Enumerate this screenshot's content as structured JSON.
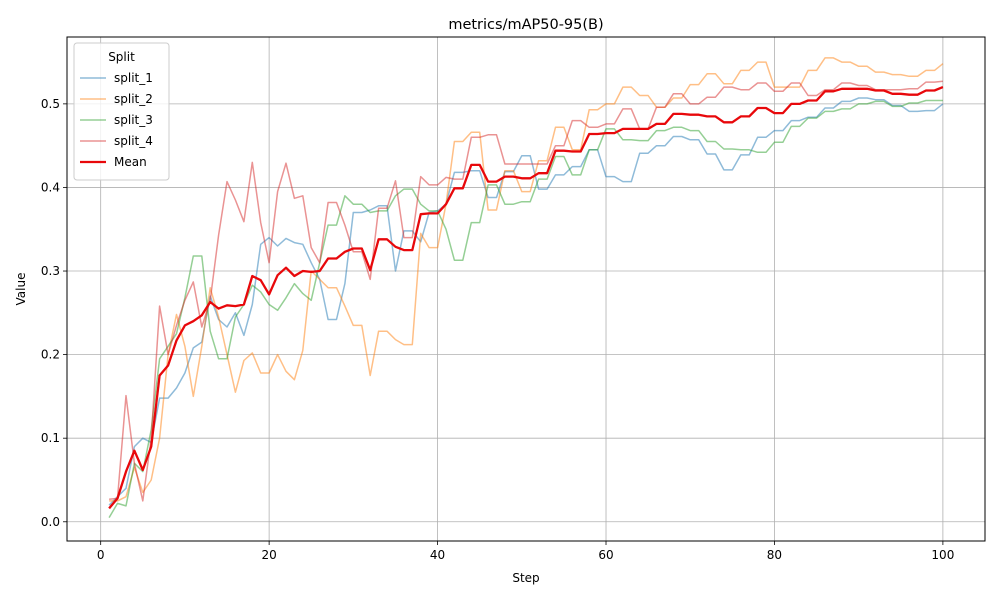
{
  "chart_data": {
    "type": "line",
    "title": "metrics/mAP50-95(B)",
    "xlabel": "Step",
    "ylabel": "Value",
    "xlim": [
      -4,
      105
    ],
    "ylim": [
      -0.023,
      0.58
    ],
    "xticks": [
      0,
      20,
      40,
      60,
      80,
      100
    ],
    "yticks": [
      0.0,
      0.1,
      0.2,
      0.3,
      0.4,
      0.5
    ],
    "xtick_labels": [
      "0",
      "20",
      "40",
      "60",
      "80",
      "100"
    ],
    "ytick_labels": [
      "0.0",
      "0.1",
      "0.2",
      "0.3",
      "0.4",
      "0.5"
    ],
    "grid": true,
    "legend": {
      "title": "Split",
      "position": "top-left"
    },
    "x": [
      1,
      2,
      3,
      4,
      5,
      6,
      7,
      8,
      9,
      10,
      11,
      12,
      13,
      14,
      15,
      16,
      17,
      18,
      19,
      20,
      21,
      22,
      23,
      24,
      25,
      26,
      27,
      28,
      29,
      30,
      31,
      32,
      33,
      34,
      35,
      36,
      37,
      38,
      39,
      40,
      41,
      42,
      43,
      44,
      45,
      46,
      47,
      48,
      49,
      50,
      51,
      52,
      53,
      54,
      55,
      56,
      57,
      58,
      59,
      60,
      61,
      62,
      63,
      64,
      65,
      66,
      67,
      68,
      69,
      70,
      71,
      72,
      73,
      74,
      75,
      76,
      77,
      78,
      79,
      80,
      81,
      82,
      83,
      84,
      85,
      86,
      87,
      88,
      89,
      90,
      91,
      92,
      93,
      94,
      95,
      96,
      97,
      98,
      99,
      100
    ],
    "series": [
      {
        "name": "split_1",
        "color": "#1f77b4",
        "opacity": 0.5,
        "width": 1.5,
        "values": [
          0.02,
          0.03,
          0.04,
          0.09,
          0.1,
          0.095,
          0.148,
          0.148,
          0.16,
          0.178,
          0.208,
          0.215,
          0.27,
          0.242,
          0.233,
          0.25,
          0.223,
          0.26,
          0.332,
          0.34,
          0.33,
          0.339,
          0.334,
          0.332,
          0.31,
          0.29,
          0.242,
          0.242,
          0.285,
          0.37,
          0.37,
          0.373,
          0.378,
          0.378,
          0.3,
          0.348,
          0.348,
          0.335,
          0.37,
          0.372,
          0.38,
          0.418,
          0.418,
          0.42,
          0.42,
          0.388,
          0.388,
          0.419,
          0.419,
          0.438,
          0.438,
          0.398,
          0.398,
          0.415,
          0.415,
          0.425,
          0.425,
          0.445,
          0.445,
          0.413,
          0.413,
          0.407,
          0.407,
          0.441,
          0.441,
          0.45,
          0.45,
          0.461,
          0.461,
          0.457,
          0.457,
          0.44,
          0.44,
          0.421,
          0.421,
          0.439,
          0.439,
          0.46,
          0.46,
          0.468,
          0.468,
          0.48,
          0.48,
          0.484,
          0.484,
          0.495,
          0.495,
          0.503,
          0.503,
          0.507,
          0.507,
          0.505,
          0.505,
          0.498,
          0.498,
          0.491,
          0.491,
          0.492,
          0.492,
          0.5
        ]
      },
      {
        "name": "split_2",
        "color": "#ff7f0e",
        "opacity": 0.5,
        "width": 1.5,
        "values": [
          0.025,
          0.025,
          0.03,
          0.065,
          0.035,
          0.05,
          0.1,
          0.2,
          0.248,
          0.21,
          0.15,
          0.21,
          0.28,
          0.245,
          0.2,
          0.155,
          0.193,
          0.202,
          0.178,
          0.178,
          0.2,
          0.18,
          0.17,
          0.205,
          0.3,
          0.29,
          0.28,
          0.28,
          0.258,
          0.235,
          0.235,
          0.175,
          0.228,
          0.228,
          0.218,
          0.212,
          0.212,
          0.345,
          0.328,
          0.328,
          0.38,
          0.455,
          0.455,
          0.466,
          0.466,
          0.373,
          0.373,
          0.42,
          0.42,
          0.395,
          0.395,
          0.432,
          0.432,
          0.472,
          0.472,
          0.445,
          0.445,
          0.493,
          0.493,
          0.5,
          0.5,
          0.52,
          0.52,
          0.51,
          0.51,
          0.496,
          0.496,
          0.507,
          0.507,
          0.523,
          0.523,
          0.536,
          0.536,
          0.524,
          0.524,
          0.54,
          0.54,
          0.55,
          0.55,
          0.52,
          0.52,
          0.52,
          0.52,
          0.54,
          0.54,
          0.555,
          0.555,
          0.55,
          0.55,
          0.545,
          0.545,
          0.538,
          0.538,
          0.535,
          0.535,
          0.533,
          0.533,
          0.54,
          0.54,
          0.548
        ]
      },
      {
        "name": "split_3",
        "color": "#2ca02c",
        "opacity": 0.5,
        "width": 1.5,
        "values": [
          0.005,
          0.022,
          0.019,
          0.07,
          0.06,
          0.11,
          0.195,
          0.21,
          0.225,
          0.268,
          0.318,
          0.318,
          0.228,
          0.195,
          0.195,
          0.245,
          0.26,
          0.283,
          0.275,
          0.26,
          0.253,
          0.268,
          0.285,
          0.273,
          0.265,
          0.31,
          0.355,
          0.355,
          0.39,
          0.38,
          0.38,
          0.37,
          0.372,
          0.372,
          0.39,
          0.398,
          0.398,
          0.38,
          0.372,
          0.372,
          0.35,
          0.313,
          0.313,
          0.358,
          0.358,
          0.403,
          0.403,
          0.38,
          0.38,
          0.383,
          0.383,
          0.41,
          0.41,
          0.437,
          0.437,
          0.415,
          0.415,
          0.445,
          0.445,
          0.47,
          0.47,
          0.457,
          0.457,
          0.456,
          0.456,
          0.468,
          0.468,
          0.472,
          0.472,
          0.468,
          0.468,
          0.455,
          0.455,
          0.446,
          0.446,
          0.445,
          0.445,
          0.442,
          0.442,
          0.454,
          0.454,
          0.473,
          0.473,
          0.483,
          0.483,
          0.491,
          0.491,
          0.494,
          0.494,
          0.5,
          0.5,
          0.503,
          0.503,
          0.497,
          0.497,
          0.501,
          0.501,
          0.504,
          0.504,
          0.504
        ]
      },
      {
        "name": "split_4",
        "color": "#d62728",
        "opacity": 0.5,
        "width": 1.5,
        "values": [
          0.027,
          0.028,
          0.151,
          0.07,
          0.025,
          0.1,
          0.258,
          0.2,
          0.235,
          0.265,
          0.287,
          0.233,
          0.265,
          0.343,
          0.407,
          0.385,
          0.359,
          0.43,
          0.358,
          0.31,
          0.395,
          0.429,
          0.387,
          0.39,
          0.328,
          0.31,
          0.382,
          0.382,
          0.355,
          0.323,
          0.323,
          0.29,
          0.375,
          0.375,
          0.408,
          0.34,
          0.34,
          0.413,
          0.403,
          0.403,
          0.412,
          0.41,
          0.41,
          0.46,
          0.46,
          0.463,
          0.463,
          0.428,
          0.428,
          0.428,
          0.428,
          0.428,
          0.428,
          0.45,
          0.45,
          0.48,
          0.48,
          0.472,
          0.472,
          0.476,
          0.476,
          0.494,
          0.494,
          0.47,
          0.47,
          0.496,
          0.496,
          0.512,
          0.512,
          0.5,
          0.5,
          0.508,
          0.508,
          0.52,
          0.52,
          0.517,
          0.517,
          0.525,
          0.525,
          0.515,
          0.515,
          0.525,
          0.525,
          0.51,
          0.51,
          0.517,
          0.517,
          0.525,
          0.525,
          0.522,
          0.522,
          0.517,
          0.517,
          0.517,
          0.517,
          0.518,
          0.518,
          0.526,
          0.526,
          0.527
        ]
      },
      {
        "name": "Mean",
        "color": "#e8080b",
        "opacity": 1.0,
        "width": 2.3,
        "values": [
          0.016,
          0.028,
          0.06,
          0.085,
          0.062,
          0.09,
          0.175,
          0.187,
          0.217,
          0.235,
          0.24,
          0.247,
          0.263,
          0.255,
          0.259,
          0.258,
          0.26,
          0.294,
          0.289,
          0.272,
          0.295,
          0.304,
          0.294,
          0.3,
          0.299,
          0.3,
          0.315,
          0.315,
          0.323,
          0.327,
          0.327,
          0.301,
          0.338,
          0.338,
          0.329,
          0.325,
          0.325,
          0.368,
          0.369,
          0.369,
          0.38,
          0.399,
          0.399,
          0.427,
          0.427,
          0.407,
          0.407,
          0.413,
          0.413,
          0.411,
          0.411,
          0.417,
          0.417,
          0.444,
          0.444,
          0.443,
          0.443,
          0.464,
          0.464,
          0.465,
          0.465,
          0.47,
          0.47,
          0.47,
          0.47,
          0.476,
          0.476,
          0.488,
          0.488,
          0.487,
          0.487,
          0.485,
          0.485,
          0.478,
          0.478,
          0.485,
          0.485,
          0.495,
          0.495,
          0.489,
          0.489,
          0.5,
          0.5,
          0.504,
          0.504,
          0.515,
          0.515,
          0.518,
          0.518,
          0.518,
          0.518,
          0.516,
          0.516,
          0.512,
          0.512,
          0.511,
          0.511,
          0.516,
          0.516,
          0.52
        ]
      }
    ]
  }
}
